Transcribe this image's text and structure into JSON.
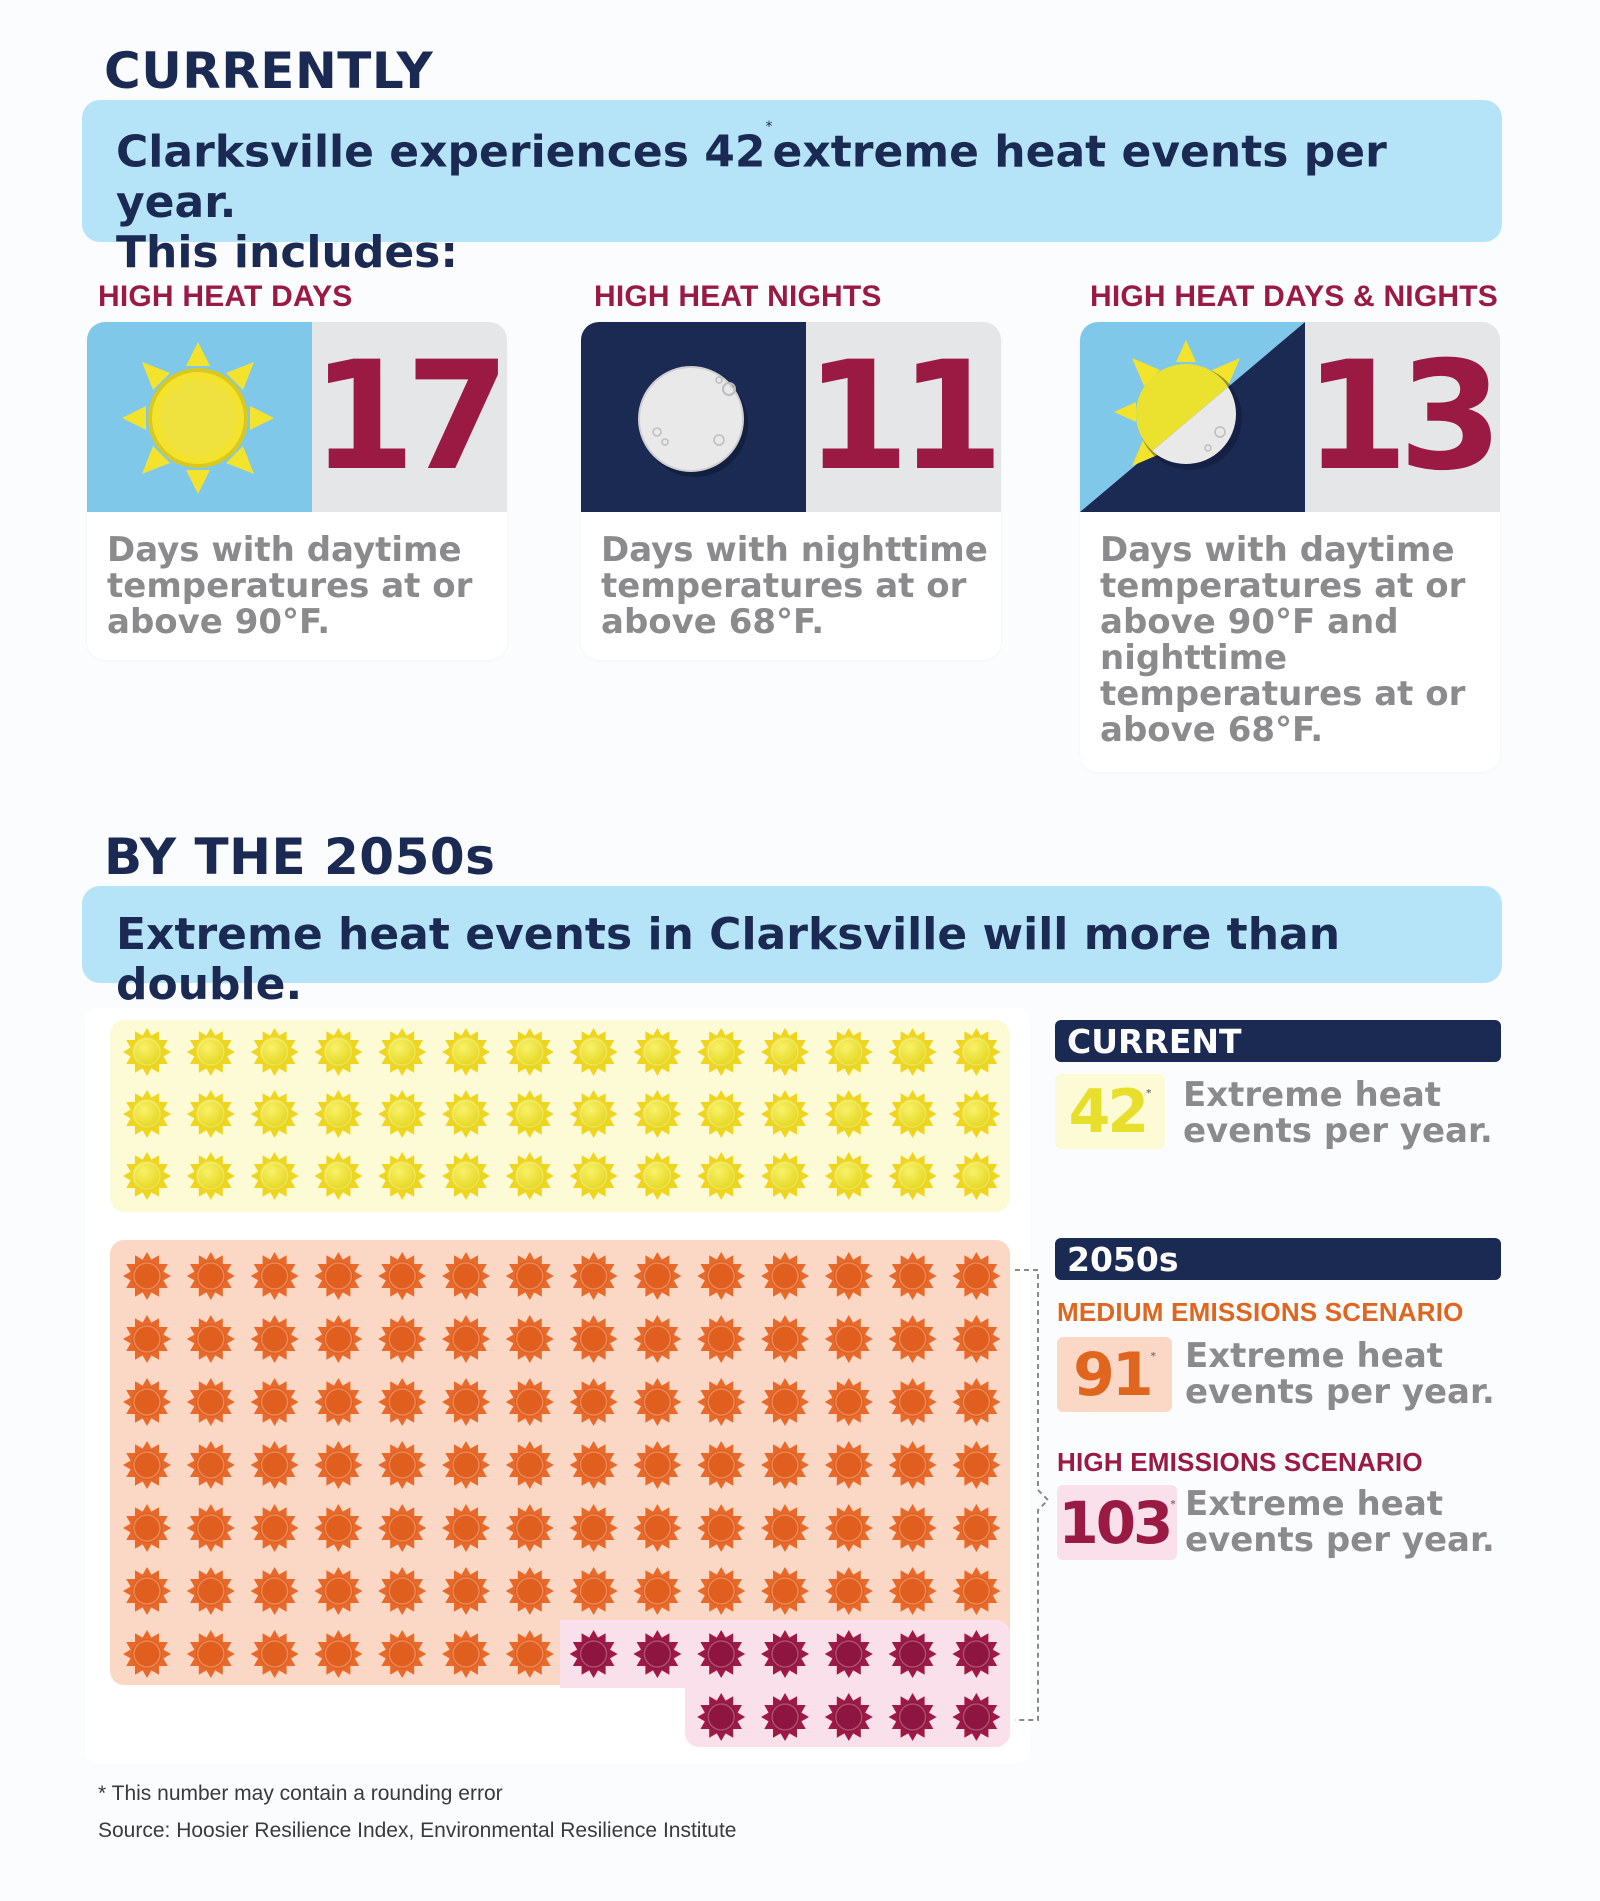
{
  "current_section": {
    "title": "CURRENTLY",
    "banner_part1": "Clarksville experiences",
    "banner_number": "42",
    "banner_asterisk": "*",
    "banner_part2": "extreme heat events per year.",
    "banner_line2": "This includes:"
  },
  "categories": [
    {
      "label": "HIGH HEAT DAYS",
      "value": "17",
      "description": "Days with daytime temperatures at or above 90°F.",
      "icon": "sun-icon"
    },
    {
      "label": "HIGH HEAT NIGHTS",
      "value": "11",
      "description": "Days with nighttime temperatures at or above 68°F.",
      "icon": "moon-icon"
    },
    {
      "label": "HIGH HEAT DAYS & NIGHTS",
      "value": "13",
      "description": "Days with daytime temperatures at or above 90°F and nighttime temperatures at or above 68°F.",
      "icon": "sun-moon-icon"
    }
  ],
  "future_section": {
    "title": "BY THE 2050s",
    "banner_part1": "Extreme heat events in Clarksville will",
    "banner_bold": "more than double."
  },
  "legend": {
    "current_header": "CURRENT",
    "current_value": "42",
    "current_asterisk": "*",
    "current_text": "Extreme heat events per year.",
    "future_header": "2050s",
    "medium_label": "MEDIUM EMISSIONS SCENARIO",
    "medium_value": "91",
    "medium_asterisk": "*",
    "medium_text": "Extreme heat events per year.",
    "high_label": "HIGH EMISSIONS SCENARIO",
    "high_value": "103",
    "high_asterisk": "*",
    "high_text": "Extreme heat events per year."
  },
  "footnotes": {
    "note": "* This number may contain a rounding error",
    "source": "Source: Hoosier Resilience Index, Environmental Resilience Institute"
  },
  "icon_grid": {
    "current_count": 42,
    "medium_count": 91,
    "high_count": 103,
    "per_row": 14
  },
  "colors": {
    "navy": "#1b2a52",
    "crimson": "#9b1a44",
    "sky": "#b5e3f8",
    "sun_yellow": "#f0df2a",
    "orange": "#e86a22",
    "current_bg": "#fdfbd5",
    "medium_bg": "#fbd8c6",
    "high_bg": "#fae0ea"
  }
}
